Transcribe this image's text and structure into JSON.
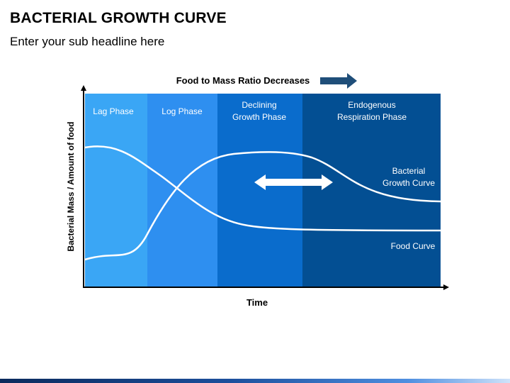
{
  "slide": {
    "title": "BACTERIAL GROWTH CURVE",
    "subtitle": "Enter your sub headline here"
  },
  "diagram": {
    "top_label": "Food to Mass Ratio Decreases",
    "y_axis_label": "Bacterial Mass / Amount of food",
    "x_axis_label": "Time",
    "phases": [
      {
        "line1": "Lag Phase",
        "line2": "",
        "color": "#3aa6f5"
      },
      {
        "line1": "Log Phase",
        "line2": "",
        "color": "#2e8ff0"
      },
      {
        "line1": "Declining",
        "line2": "Growth Phase",
        "color": "#0a6ccc"
      },
      {
        "line1": "Endogenous",
        "line2": "Respiration Phase",
        "color": "#034f93"
      }
    ],
    "curve_labels": {
      "growth_line1": "Bacterial",
      "growth_line2": "Growth Curve",
      "food": "Food Curve"
    },
    "colors": {
      "arrow": "#1f4e79",
      "curve": "#ffffff",
      "axis": "#000000"
    }
  }
}
